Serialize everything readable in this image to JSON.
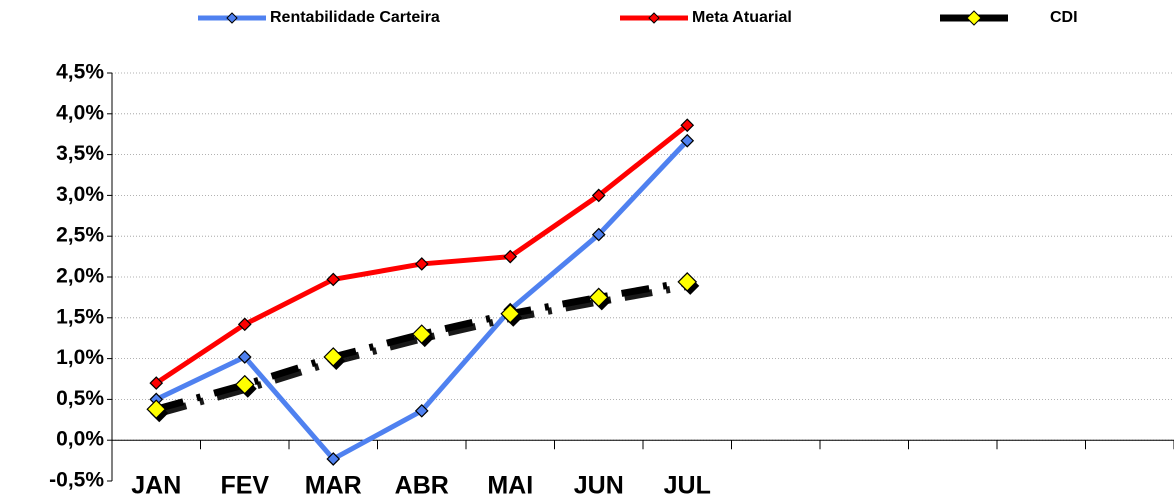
{
  "chart_data": {
    "type": "line",
    "categories": [
      "JAN",
      "FEV",
      "MAR",
      "ABR",
      "MAI",
      "JUN",
      "JUL",
      null,
      null,
      null,
      null,
      null
    ],
    "series": [
      {
        "name": "Rentabilidade Carteira",
        "color": "#4f81f0",
        "marker_color": "#4f81f0",
        "line_style": "solid",
        "values": [
          0.5,
          1.02,
          -0.23,
          0.36,
          1.6,
          2.52,
          3.67,
          null,
          null,
          null,
          null,
          null
        ]
      },
      {
        "name": "Meta Atuarial",
        "color": "#ff0000",
        "marker_color": "#ff0000",
        "line_style": "solid",
        "values": [
          0.7,
          1.42,
          1.97,
          2.16,
          2.25,
          3.0,
          3.86,
          null,
          null,
          null,
          null,
          null
        ]
      },
      {
        "name": "CDI",
        "color": "#000000",
        "marker_color": "#ffff00",
        "line_style": "dashed",
        "values": [
          0.38,
          0.68,
          1.02,
          1.3,
          1.55,
          1.75,
          1.94,
          null,
          null,
          null,
          null,
          null
        ]
      }
    ],
    "ylim": [
      -0.5,
      4.5
    ],
    "yticks": [
      {
        "value": -0.5,
        "label": "-0,5%"
      },
      {
        "value": 0,
        "label": "0,0%"
      },
      {
        "value": 0.5,
        "label": "0,5%"
      },
      {
        "value": 1,
        "label": "1,0%"
      },
      {
        "value": 1.5,
        "label": "1,5%"
      },
      {
        "value": 2,
        "label": "2,0%"
      },
      {
        "value": 2.5,
        "label": "2,5%"
      },
      {
        "value": 3,
        "label": "3,0%"
      },
      {
        "value": 3.5,
        "label": "3,5%"
      },
      {
        "value": 4,
        "label": "4,0%"
      },
      {
        "value": 4.5,
        "label": "4,5%"
      }
    ],
    "grid": true,
    "legend": "top"
  }
}
